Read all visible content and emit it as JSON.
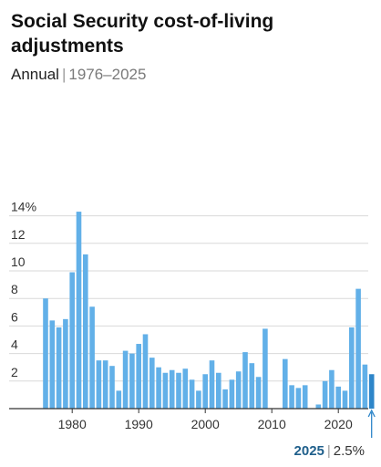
{
  "title": "Social Security cost-of-living adjustments",
  "subtitle": {
    "label": "Annual",
    "separator": "|",
    "range": "1976–2025"
  },
  "callout": {
    "year": "2025",
    "separator": "|",
    "value": "2.5%"
  },
  "colors": {
    "bar": "#62b0e8",
    "highlight": "#2e86c9",
    "grid": "#d9d9d9",
    "axis": "#333333",
    "callout_year": "#1f5f8b"
  },
  "chart_data": {
    "type": "bar",
    "x": [
      1976,
      1977,
      1978,
      1979,
      1980,
      1981,
      1982,
      1983,
      1984,
      1985,
      1986,
      1987,
      1988,
      1989,
      1990,
      1991,
      1992,
      1993,
      1994,
      1995,
      1996,
      1997,
      1998,
      1999,
      2000,
      2001,
      2002,
      2003,
      2004,
      2005,
      2006,
      2007,
      2008,
      2009,
      2010,
      2011,
      2012,
      2013,
      2014,
      2015,
      2016,
      2017,
      2018,
      2019,
      2020,
      2021,
      2022,
      2023,
      2024,
      2025
    ],
    "values": [
      8.0,
      6.4,
      5.9,
      6.5,
      9.9,
      14.3,
      11.2,
      7.4,
      3.5,
      3.5,
      3.1,
      1.3,
      4.2,
      4.0,
      4.7,
      5.4,
      3.7,
      3.0,
      2.6,
      2.8,
      2.6,
      2.9,
      2.1,
      1.3,
      2.5,
      3.5,
      2.6,
      1.4,
      2.1,
      2.7,
      4.1,
      3.3,
      2.3,
      5.8,
      0.0,
      0.0,
      3.6,
      1.7,
      1.5,
      1.7,
      0.0,
      0.3,
      2.0,
      2.8,
      1.6,
      1.3,
      5.9,
      8.7,
      3.2,
      2.5
    ],
    "highlight_year": 2025,
    "ylim": [
      0,
      15
    ],
    "yticks": [
      2,
      4,
      6,
      8,
      10,
      12,
      14
    ],
    "ytick_labels": [
      "2",
      "4",
      "6",
      "8",
      "10",
      "12",
      "14%"
    ],
    "xticks": [
      1980,
      1990,
      2000,
      2010,
      2020
    ],
    "xtick_labels": [
      "1980",
      "1990",
      "2000",
      "2010",
      "2020"
    ],
    "grid": true,
    "xlabel": "",
    "ylabel": ""
  }
}
